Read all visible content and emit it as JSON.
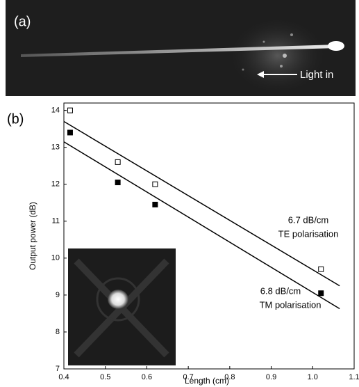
{
  "panel_labels": {
    "a": "(a)",
    "b": "(b)"
  },
  "photo_annotation": "Light in",
  "chart_data": {
    "type": "scatter",
    "xlabel": "Length (cm)",
    "ylabel": "Output power (dB)",
    "xlim": [
      0.4,
      1.1
    ],
    "ylim": [
      7,
      14.2
    ],
    "xticks": [
      0.4,
      0.5,
      0.6,
      0.7,
      0.8,
      0.9,
      {
        "value": 1,
        "label": "1.0"
      },
      1.1
    ],
    "yticks": [
      7,
      8,
      9,
      10,
      11,
      12,
      13,
      14
    ],
    "series": [
      {
        "marker": "open-square",
        "color": "#000000",
        "x": [
          0.415,
          0.53,
          0.62,
          1.02
        ],
        "values": [
          14.0,
          12.6,
          12.0,
          9.7
        ],
        "fit": {
          "x": [
            0.4,
            1.065
          ],
          "values": [
            13.7,
            9.25
          ]
        }
      },
      {
        "marker": "filled-square",
        "color": "#000000",
        "x": [
          0.415,
          0.53,
          0.62,
          1.02
        ],
        "values": [
          13.4,
          12.05,
          11.45,
          9.05
        ],
        "fit": {
          "x": [
            0.4,
            1.065
          ],
          "values": [
            13.15,
            8.63
          ]
        }
      }
    ],
    "annotations": [
      "6.7 dB/cm",
      "TE polarisation",
      "6.8 dB/cm",
      "TM polarisation"
    ]
  }
}
